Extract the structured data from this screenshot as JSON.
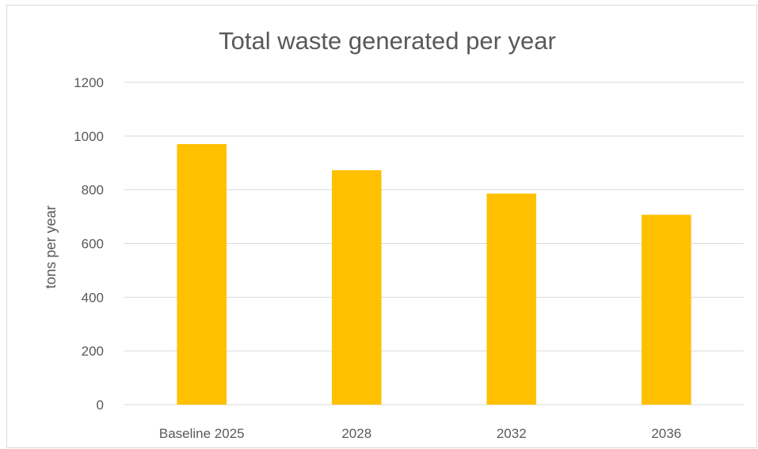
{
  "chart_data": {
    "type": "bar",
    "title": "Total waste generated per year",
    "xlabel": "",
    "ylabel": "tons per year",
    "categories": [
      "Baseline 2025",
      "2028",
      "2032",
      "2036"
    ],
    "values": [
      970,
      873,
      786,
      707
    ],
    "ylim": [
      0,
      1200
    ],
    "yticks": [
      "0",
      "200",
      "400",
      "600",
      "800",
      "1000",
      "1200"
    ],
    "bar_color": "#FFC000",
    "grid": true,
    "legend": "none"
  }
}
